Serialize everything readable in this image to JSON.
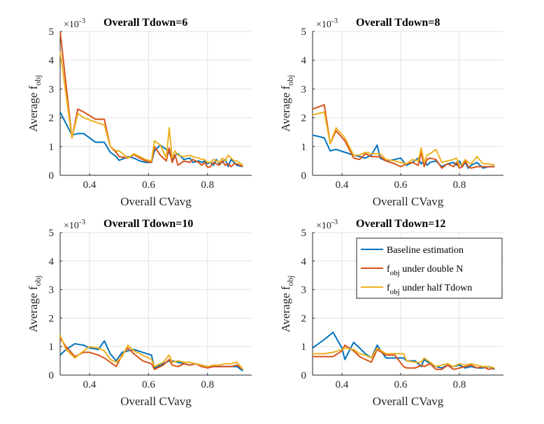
{
  "colors": {
    "baseline": "#0072BD",
    "double_n": "#D95319",
    "half_tdown": "#EDB120"
  },
  "chart_data": [
    {
      "type": "line",
      "title": "Overall Tdown=6",
      "exponent_label": "×10",
      "exponent_power": "-3",
      "xlabel": "Overall CVavg",
      "ylabel": "Average f",
      "ylabel_sub": "obj",
      "xlim": [
        0.3,
        0.95
      ],
      "ylim": [
        0,
        5
      ],
      "xticks": [
        0.4,
        0.6,
        0.8
      ],
      "xtick_labels": [
        "0.4",
        "0.6",
        "0.8"
      ],
      "yticks": [
        0,
        1,
        2,
        3,
        4,
        5
      ],
      "ytick_labels": [
        "0",
        "1",
        "2",
        "3",
        "4",
        "5"
      ],
      "x": [
        0.3,
        0.34,
        0.36,
        0.38,
        0.42,
        0.45,
        0.47,
        0.49,
        0.5,
        0.52,
        0.53,
        0.55,
        0.57,
        0.59,
        0.61,
        0.62,
        0.64,
        0.66,
        0.67,
        0.68,
        0.69,
        0.7,
        0.72,
        0.74,
        0.75,
        0.77,
        0.78,
        0.79,
        0.8,
        0.81,
        0.82,
        0.83,
        0.84,
        0.85,
        0.86,
        0.87,
        0.88,
        0.89,
        0.9,
        0.92
      ],
      "series": [
        {
          "name": "Baseline estimation",
          "color_key": "baseline",
          "values": [
            2.2,
            1.4,
            1.45,
            1.45,
            1.15,
            1.15,
            0.8,
            0.65,
            0.52,
            0.6,
            0.65,
            0.6,
            0.5,
            0.45,
            0.45,
            0.85,
            1.05,
            0.9,
            0.8,
            0.55,
            0.7,
            0.75,
            0.55,
            0.6,
            0.45,
            0.5,
            0.45,
            0.5,
            0.4,
            0.45,
            0.35,
            0.55,
            0.4,
            0.45,
            0.55,
            0.3,
            0.55,
            0.45,
            0.35,
            0.3
          ]
        },
        {
          "name": "f_obj under double N",
          "color_key": "double_n",
          "values": [
            5.0,
            1.3,
            2.3,
            2.2,
            1.95,
            1.95,
            1.0,
            0.8,
            0.65,
            0.62,
            0.6,
            0.72,
            0.6,
            0.5,
            0.45,
            1.0,
            0.7,
            0.5,
            0.95,
            0.45,
            0.7,
            0.35,
            0.5,
            0.45,
            0.55,
            0.45,
            0.35,
            0.45,
            0.28,
            0.3,
            0.45,
            0.4,
            0.35,
            0.5,
            0.35,
            0.4,
            0.3,
            0.4,
            0.4,
            0.3
          ]
        },
        {
          "name": "f_obj under half Tdown",
          "color_key": "half_tdown",
          "values": [
            4.3,
            1.3,
            2.15,
            2.0,
            1.85,
            1.75,
            1.0,
            0.85,
            0.85,
            0.7,
            0.6,
            0.75,
            0.65,
            0.55,
            0.5,
            1.2,
            1.05,
            0.6,
            1.65,
            0.6,
            0.85,
            0.7,
            0.65,
            0.7,
            0.65,
            0.6,
            0.55,
            0.55,
            0.45,
            0.45,
            0.55,
            0.5,
            0.45,
            0.6,
            0.5,
            0.7,
            0.6,
            0.5,
            0.5,
            0.35
          ]
        }
      ]
    },
    {
      "type": "line",
      "title": "Overall Tdown=8",
      "exponent_label": "×10",
      "exponent_power": "-3",
      "xlabel": "Overall CVavg",
      "ylabel": "Average f",
      "ylabel_sub": "obj",
      "xlim": [
        0.3,
        0.95
      ],
      "ylim": [
        0,
        5
      ],
      "xticks": [
        0.4,
        0.6,
        0.8
      ],
      "xtick_labels": [
        "0.4",
        "0.6",
        "0.8"
      ],
      "yticks": [
        0,
        1,
        2,
        3,
        4,
        5
      ],
      "ytick_labels": [
        "0",
        "1",
        "2",
        "3",
        "4",
        "5"
      ],
      "x": [
        0.3,
        0.34,
        0.36,
        0.38,
        0.41,
        0.44,
        0.46,
        0.48,
        0.5,
        0.52,
        0.53,
        0.55,
        0.58,
        0.6,
        0.62,
        0.64,
        0.66,
        0.67,
        0.68,
        0.69,
        0.7,
        0.72,
        0.74,
        0.76,
        0.78,
        0.79,
        0.8,
        0.81,
        0.82,
        0.83,
        0.84,
        0.86,
        0.88,
        0.9,
        0.92
      ],
      "series": [
        {
          "name": "Baseline estimation",
          "color_key": "baseline",
          "values": [
            1.4,
            1.3,
            0.85,
            0.9,
            0.8,
            0.7,
            0.65,
            0.6,
            0.7,
            1.05,
            0.6,
            0.5,
            0.55,
            0.6,
            0.35,
            0.45,
            0.6,
            0.4,
            0.5,
            0.35,
            0.45,
            0.5,
            0.3,
            0.4,
            0.45,
            0.35,
            0.5,
            0.3,
            0.45,
            0.25,
            0.35,
            0.45,
            0.25,
            0.3,
            0.3
          ]
        },
        {
          "name": "f_obj under double N",
          "color_key": "double_n",
          "values": [
            2.3,
            2.45,
            1.1,
            1.55,
            1.2,
            0.6,
            0.55,
            0.75,
            0.65,
            0.65,
            0.65,
            0.5,
            0.4,
            0.3,
            0.4,
            0.45,
            0.35,
            0.8,
            0.3,
            0.55,
            0.6,
            0.55,
            0.25,
            0.4,
            0.3,
            0.45,
            0.25,
            0.3,
            0.5,
            0.3,
            0.25,
            0.3,
            0.3,
            0.3,
            0.3
          ]
        },
        {
          "name": "f_obj under half Tdown",
          "color_key": "half_tdown",
          "values": [
            2.1,
            2.2,
            1.1,
            1.65,
            1.3,
            0.7,
            0.7,
            0.8,
            0.75,
            0.75,
            0.75,
            0.55,
            0.5,
            0.45,
            0.4,
            0.55,
            0.5,
            0.95,
            0.45,
            0.7,
            0.75,
            0.9,
            0.45,
            0.5,
            0.55,
            0.6,
            0.35,
            0.4,
            0.55,
            0.45,
            0.4,
            0.65,
            0.4,
            0.4,
            0.35
          ]
        }
      ]
    },
    {
      "type": "line",
      "title": "Overall Tdown=10",
      "exponent_label": "×10",
      "exponent_power": "-3",
      "xlabel": "Overall CVavg",
      "ylabel": "Average f",
      "ylabel_sub": "obj",
      "xlim": [
        0.3,
        0.95
      ],
      "ylim": [
        0,
        5
      ],
      "xticks": [
        0.4,
        0.6,
        0.8
      ],
      "xtick_labels": [
        "0.4",
        "0.6",
        "0.8"
      ],
      "yticks": [
        0,
        1,
        2,
        3,
        4,
        5
      ],
      "ytick_labels": [
        "0",
        "1",
        "2",
        "3",
        "4",
        "5"
      ],
      "x": [
        0.3,
        0.32,
        0.35,
        0.38,
        0.4,
        0.43,
        0.45,
        0.47,
        0.49,
        0.51,
        0.53,
        0.55,
        0.58,
        0.61,
        0.62,
        0.65,
        0.67,
        0.68,
        0.7,
        0.72,
        0.74,
        0.76,
        0.78,
        0.8,
        0.82,
        0.84,
        0.86,
        0.88,
        0.9,
        0.92
      ],
      "series": [
        {
          "name": "Baseline estimation",
          "color_key": "baseline",
          "values": [
            0.7,
            0.9,
            1.1,
            1.05,
            0.95,
            0.9,
            1.2,
            0.75,
            0.5,
            0.8,
            0.85,
            0.9,
            0.8,
            0.7,
            0.25,
            0.4,
            0.5,
            0.5,
            0.45,
            0.4,
            0.35,
            0.4,
            0.35,
            0.3,
            0.3,
            0.3,
            0.3,
            0.3,
            0.3,
            0.15
          ]
        },
        {
          "name": "f_obj under double N",
          "color_key": "double_n",
          "values": [
            1.3,
            1.0,
            0.65,
            0.8,
            0.8,
            0.7,
            0.6,
            0.45,
            0.3,
            0.7,
            0.95,
            0.75,
            0.5,
            0.4,
            0.2,
            0.35,
            0.55,
            0.35,
            0.3,
            0.4,
            0.35,
            0.4,
            0.3,
            0.25,
            0.3,
            0.3,
            0.3,
            0.3,
            0.35,
            0.2
          ]
        },
        {
          "name": "f_obj under half Tdown",
          "color_key": "half_tdown",
          "values": [
            1.4,
            0.9,
            0.6,
            0.85,
            1.0,
            0.95,
            0.85,
            0.55,
            0.45,
            0.65,
            1.05,
            0.85,
            0.7,
            0.55,
            0.3,
            0.45,
            0.7,
            0.45,
            0.5,
            0.45,
            0.45,
            0.4,
            0.35,
            0.3,
            0.35,
            0.35,
            0.4,
            0.4,
            0.45,
            0.2
          ]
        }
      ]
    },
    {
      "type": "line",
      "title": "Overall Tdown=12",
      "exponent_label": "×10",
      "exponent_power": "-3",
      "xlabel": "Overall CVavg",
      "ylabel": "Average f",
      "ylabel_sub": "obj",
      "xlim": [
        0.3,
        0.95
      ],
      "ylim": [
        0,
        5
      ],
      "xticks": [
        0.4,
        0.6,
        0.8
      ],
      "xtick_labels": [
        "0.4",
        "0.6",
        "0.8"
      ],
      "yticks": [
        0,
        1,
        2,
        3,
        4,
        5
      ],
      "ytick_labels": [
        "0",
        "1",
        "2",
        "3",
        "4",
        "5"
      ],
      "legend": {
        "location": "top-right",
        "entries": [
          {
            "label": "Baseline estimation",
            "sub": "",
            "suffix": "",
            "color_key": "baseline"
          },
          {
            "label": "f",
            "sub": "obj",
            "suffix": " under double N",
            "color_key": "double_n"
          },
          {
            "label": "f",
            "sub": "obj",
            "suffix": " under half Tdown",
            "color_key": "half_tdown"
          }
        ]
      },
      "x": [
        0.3,
        0.34,
        0.37,
        0.4,
        0.41,
        0.44,
        0.46,
        0.48,
        0.5,
        0.52,
        0.55,
        0.58,
        0.61,
        0.62,
        0.65,
        0.67,
        0.68,
        0.7,
        0.72,
        0.74,
        0.76,
        0.78,
        0.8,
        0.82,
        0.84,
        0.86,
        0.88,
        0.9,
        0.92
      ],
      "series": [
        {
          "name": "Baseline estimation",
          "color_key": "baseline",
          "values": [
            0.95,
            1.25,
            1.5,
            0.95,
            0.55,
            1.15,
            0.95,
            0.75,
            0.6,
            1.05,
            0.6,
            0.6,
            0.6,
            0.5,
            0.5,
            0.3,
            0.55,
            0.4,
            0.3,
            0.25,
            0.35,
            0.3,
            0.35,
            0.25,
            0.3,
            0.25,
            0.25,
            0.3,
            0.2
          ]
        },
        {
          "name": "f_obj under double N",
          "color_key": "double_n",
          "values": [
            0.65,
            0.65,
            0.65,
            0.85,
            1.05,
            0.85,
            0.65,
            0.55,
            0.45,
            0.9,
            0.7,
            0.7,
            0.3,
            0.25,
            0.25,
            0.35,
            0.3,
            0.4,
            0.2,
            0.2,
            0.35,
            0.2,
            0.25,
            0.3,
            0.35,
            0.25,
            0.3,
            0.2,
            0.25
          ]
        },
        {
          "name": "f_obj under half Tdown",
          "color_key": "half_tdown",
          "values": [
            0.75,
            0.75,
            0.8,
            0.9,
            0.95,
            0.9,
            0.75,
            0.7,
            0.6,
            0.95,
            0.75,
            0.75,
            0.75,
            0.5,
            0.45,
            0.45,
            0.6,
            0.45,
            0.3,
            0.35,
            0.4,
            0.3,
            0.4,
            0.35,
            0.4,
            0.35,
            0.3,
            0.3,
            0.25
          ]
        }
      ]
    }
  ]
}
